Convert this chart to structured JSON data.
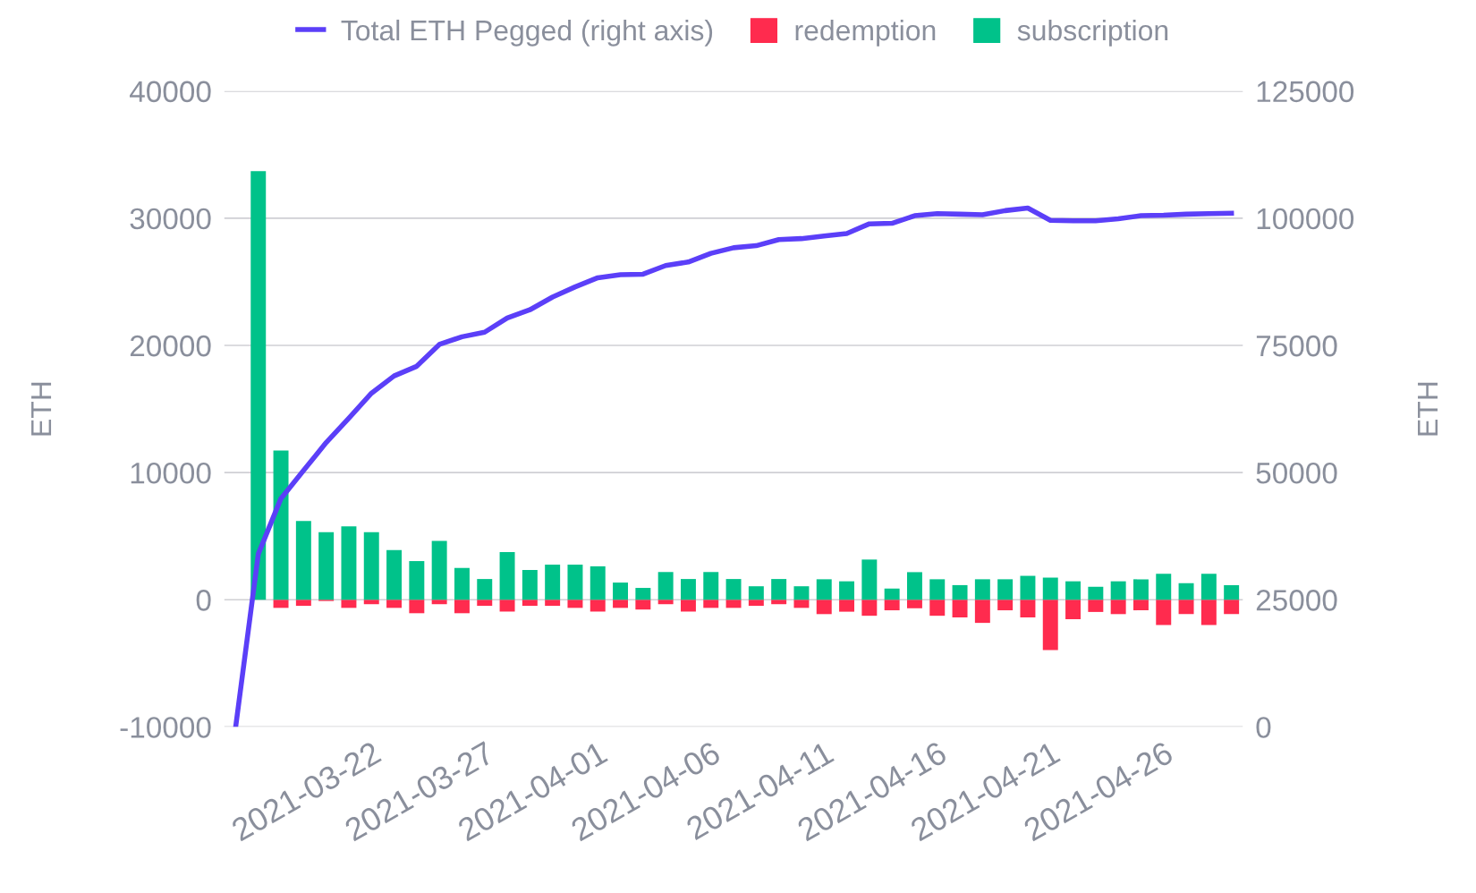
{
  "chart_data": {
    "type": "bar",
    "stacked": true,
    "xlabel": null,
    "ylabel": "ETH",
    "y2label": "ETH",
    "x": [
      "2021-03-16",
      "2021-03-17",
      "2021-03-18",
      "2021-03-19",
      "2021-03-20",
      "2021-03-21",
      "2021-03-22",
      "2021-03-23",
      "2021-03-24",
      "2021-03-25",
      "2021-03-26",
      "2021-03-27",
      "2021-03-28",
      "2021-03-29",
      "2021-03-30",
      "2021-03-31",
      "2021-04-01",
      "2021-04-02",
      "2021-04-03",
      "2021-04-04",
      "2021-04-05",
      "2021-04-06",
      "2021-04-07",
      "2021-04-08",
      "2021-04-09",
      "2021-04-10",
      "2021-04-11",
      "2021-04-12",
      "2021-04-13",
      "2021-04-14",
      "2021-04-15",
      "2021-04-16",
      "2021-04-17",
      "2021-04-18",
      "2021-04-19",
      "2021-04-20",
      "2021-04-21",
      "2021-04-22",
      "2021-04-23",
      "2021-04-24",
      "2021-04-25",
      "2021-04-26",
      "2021-04-27",
      "2021-04-28",
      "2021-04-29"
    ],
    "series": [
      {
        "name": "Total ETH Pegged (right axis)",
        "type": "line",
        "axis": "y2",
        "color": "#5b3ff8",
        "values": [
          0,
          34000,
          44900,
          50400,
          55900,
          60700,
          65600,
          69000,
          70900,
          75200,
          76700,
          77600,
          80400,
          82000,
          84500,
          86500,
          88300,
          88900,
          89000,
          90700,
          91400,
          93100,
          94200,
          94600,
          95800,
          96000,
          96500,
          97000,
          98900,
          99000,
          100500,
          100900,
          100800,
          100700,
          101500,
          102000,
          99600,
          99500,
          99500,
          99900,
          100500,
          100600,
          100800,
          100900,
          101000
        ]
      },
      {
        "name": "redemption",
        "color": "#ff2b4e",
        "values": [
          0,
          0,
          -640,
          -480,
          -100,
          -640,
          -350,
          -640,
          -1060,
          -350,
          -1060,
          -480,
          -930,
          -480,
          -480,
          -640,
          -930,
          -640,
          -770,
          -350,
          -930,
          -640,
          -640,
          -480,
          -350,
          -640,
          -1130,
          -940,
          -1260,
          -830,
          -670,
          -1260,
          -1390,
          -1820,
          -830,
          -1390,
          -3950,
          -1530,
          -960,
          -1130,
          -830,
          -1980,
          -1130,
          -1980,
          -1130
        ]
      },
      {
        "name": "subscription",
        "color": "#00c28a",
        "values": [
          0,
          33700,
          11730,
          6190,
          5320,
          5770,
          5320,
          3910,
          3040,
          4620,
          2500,
          1630,
          3750,
          2340,
          2760,
          2760,
          2630,
          1350,
          930,
          2180,
          1630,
          2180,
          1630,
          1060,
          1630,
          1060,
          1610,
          1450,
          3160,
          880,
          2170,
          1610,
          1150,
          1610,
          1610,
          1880,
          1740,
          1450,
          1020,
          1450,
          1610,
          2040,
          1310,
          2040,
          1150
        ]
      }
    ],
    "xlim": [
      "2021-03-15T12:00",
      "2021-04-29T12:00"
    ],
    "xticks": [
      "2021-03-22",
      "2021-03-27",
      "2021-04-01",
      "2021-04-06",
      "2021-04-11",
      "2021-04-16",
      "2021-04-21",
      "2021-04-26"
    ],
    "ylim": [
      -10000,
      40000
    ],
    "yticks": [
      -10000,
      0,
      10000,
      20000,
      30000,
      40000
    ],
    "y2lim": [
      0,
      125000
    ],
    "y2ticks": [
      0,
      25000,
      50000,
      75000,
      100000,
      125000
    ],
    "grid": "y",
    "legend": "top",
    "marker": "none",
    "line_style": "solid"
  }
}
